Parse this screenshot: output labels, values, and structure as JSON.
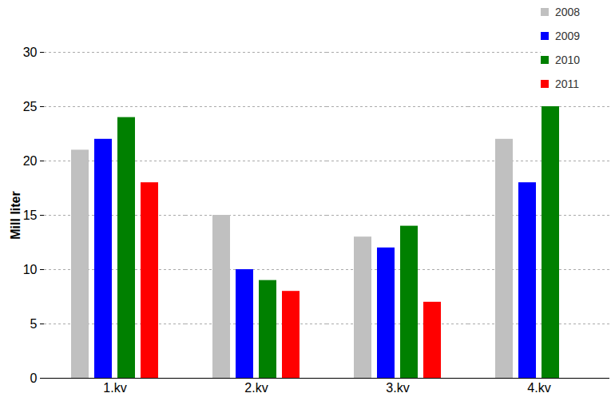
{
  "chart_data": {
    "type": "bar",
    "y_label": "Mill liter",
    "categories": [
      "1.kv",
      "2.kv",
      "3.kv",
      "4.kv"
    ],
    "series": [
      {
        "name": "2008",
        "color": "#c0c0c0",
        "values": [
          21,
          15,
          13,
          22
        ]
      },
      {
        "name": "2009",
        "color": "#0000ff",
        "values": [
          22,
          10,
          12,
          18
        ]
      },
      {
        "name": "2010",
        "color": "#008000",
        "values": [
          24,
          9,
          14,
          25
        ]
      },
      {
        "name": "2011",
        "color": "#ff0000",
        "values": [
          18,
          8,
          7,
          null
        ]
      }
    ],
    "ylim": [
      0,
      30
    ],
    "yticks": [
      0,
      5,
      10,
      15,
      20,
      25,
      30
    ],
    "grid": true,
    "legend": "top-right"
  }
}
